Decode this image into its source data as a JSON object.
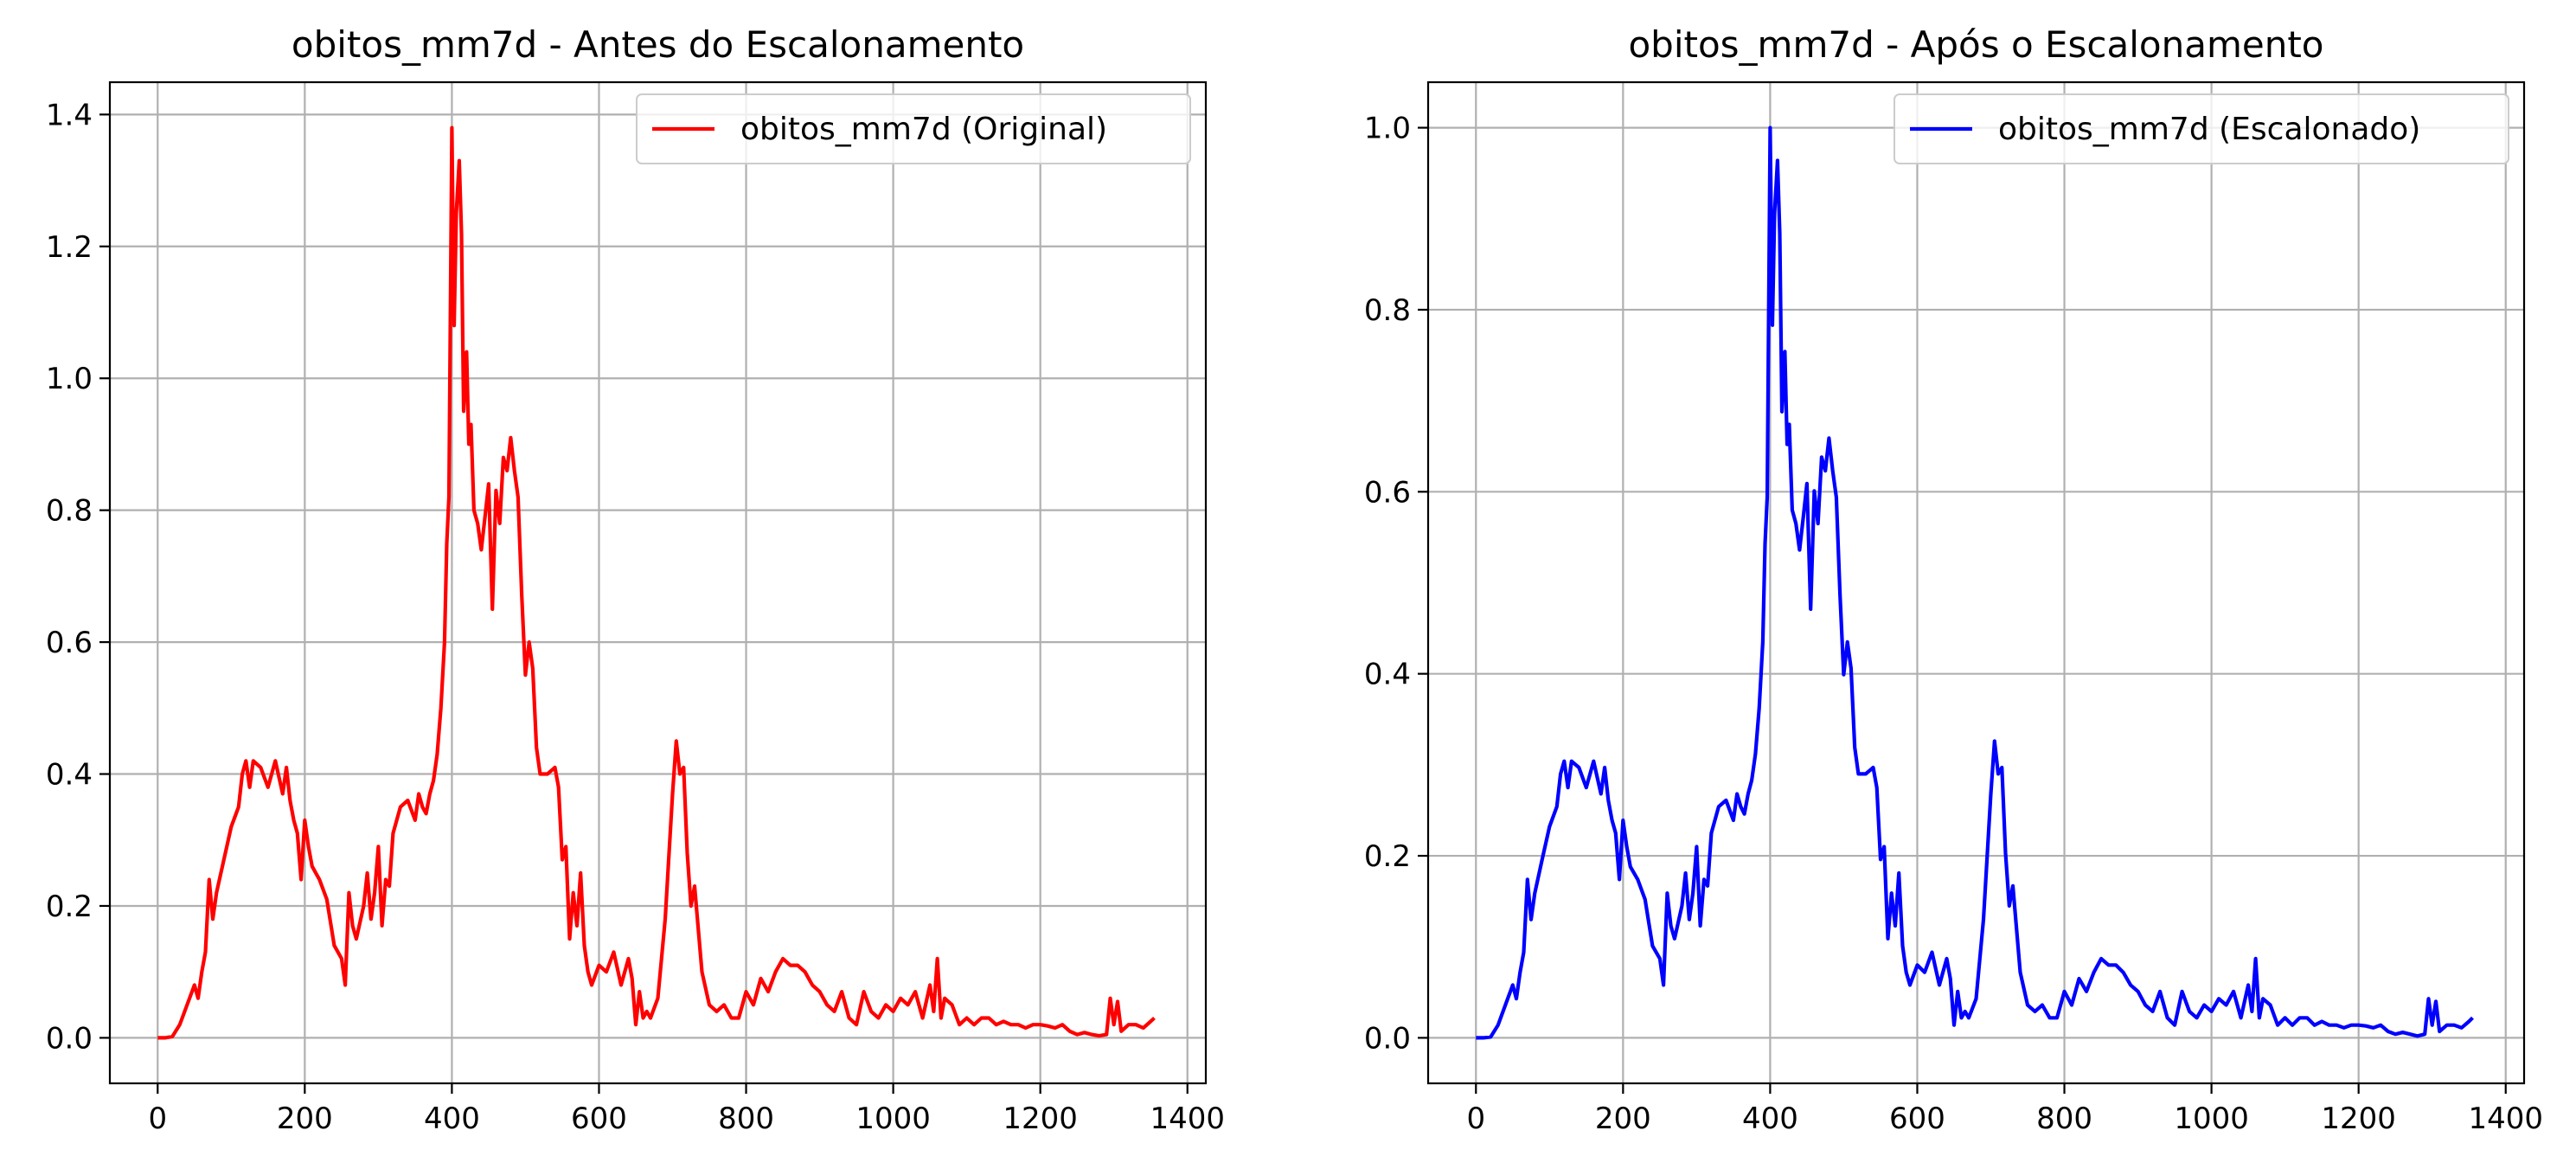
{
  "chart_data": [
    {
      "type": "line",
      "title": "obitos_mm7d - Antes do Escalonamento",
      "xlabel": "",
      "ylabel": "",
      "xlim": [
        -65,
        1425
      ],
      "ylim": [
        -0.069,
        1.449
      ],
      "xticks": [
        0,
        200,
        400,
        600,
        800,
        1000,
        1200,
        1400
      ],
      "yticks": [
        0.0,
        0.2,
        0.4,
        0.6,
        0.8,
        1.0,
        1.2,
        1.4
      ],
      "ytick_labels": [
        "0.0",
        "0.2",
        "0.4",
        "0.6",
        "0.8",
        "1.0",
        "1.2",
        "1.4"
      ],
      "grid": true,
      "legend_position": "top-right",
      "series": [
        {
          "name": "obitos_mm7d (Original)",
          "color": "#ff0000",
          "x": [
            0,
            10,
            20,
            30,
            40,
            50,
            55,
            60,
            65,
            70,
            75,
            80,
            90,
            100,
            110,
            115,
            120,
            125,
            130,
            140,
            150,
            160,
            170,
            175,
            180,
            185,
            190,
            195,
            200,
            205,
            210,
            220,
            230,
            240,
            250,
            255,
            260,
            265,
            270,
            280,
            285,
            290,
            295,
            300,
            305,
            310,
            315,
            320,
            330,
            340,
            350,
            355,
            360,
            365,
            370,
            375,
            380,
            385,
            390,
            393,
            396,
            400,
            403,
            406,
            410,
            413,
            416,
            420,
            423,
            426,
            430,
            435,
            440,
            445,
            450,
            455,
            460,
            465,
            470,
            475,
            480,
            485,
            490,
            495,
            500,
            505,
            510,
            515,
            520,
            530,
            540,
            545,
            550,
            555,
            560,
            565,
            570,
            575,
            580,
            585,
            590,
            600,
            610,
            620,
            630,
            640,
            645,
            650,
            655,
            660,
            665,
            670,
            680,
            690,
            700,
            705,
            710,
            715,
            720,
            725,
            730,
            740,
            750,
            760,
            770,
            780,
            790,
            800,
            810,
            820,
            830,
            840,
            850,
            860,
            870,
            880,
            890,
            900,
            910,
            920,
            930,
            940,
            950,
            960,
            970,
            980,
            990,
            1000,
            1010,
            1020,
            1030,
            1040,
            1050,
            1055,
            1060,
            1065,
            1070,
            1080,
            1090,
            1100,
            1110,
            1120,
            1130,
            1140,
            1150,
            1160,
            1170,
            1180,
            1190,
            1200,
            1210,
            1220,
            1230,
            1240,
            1250,
            1260,
            1270,
            1280,
            1290,
            1295,
            1300,
            1305,
            1310,
            1320,
            1330,
            1340,
            1350,
            1355
          ],
          "y": [
            0.0,
            0.0,
            0.002,
            0.02,
            0.05,
            0.08,
            0.06,
            0.1,
            0.13,
            0.24,
            0.18,
            0.22,
            0.27,
            0.32,
            0.35,
            0.4,
            0.42,
            0.38,
            0.42,
            0.41,
            0.38,
            0.42,
            0.37,
            0.41,
            0.36,
            0.33,
            0.31,
            0.24,
            0.33,
            0.29,
            0.26,
            0.24,
            0.21,
            0.14,
            0.12,
            0.08,
            0.22,
            0.17,
            0.15,
            0.2,
            0.25,
            0.18,
            0.22,
            0.29,
            0.17,
            0.24,
            0.23,
            0.31,
            0.35,
            0.36,
            0.33,
            0.37,
            0.35,
            0.34,
            0.37,
            0.39,
            0.43,
            0.5,
            0.6,
            0.75,
            0.82,
            1.38,
            1.08,
            1.25,
            1.33,
            1.22,
            0.95,
            1.04,
            0.9,
            0.93,
            0.8,
            0.78,
            0.74,
            0.79,
            0.84,
            0.65,
            0.83,
            0.78,
            0.88,
            0.86,
            0.91,
            0.86,
            0.82,
            0.67,
            0.55,
            0.6,
            0.56,
            0.44,
            0.4,
            0.4,
            0.41,
            0.38,
            0.27,
            0.29,
            0.15,
            0.22,
            0.17,
            0.25,
            0.14,
            0.1,
            0.08,
            0.11,
            0.1,
            0.13,
            0.08,
            0.12,
            0.09,
            0.02,
            0.07,
            0.03,
            0.04,
            0.03,
            0.06,
            0.18,
            0.37,
            0.45,
            0.4,
            0.41,
            0.28,
            0.2,
            0.23,
            0.1,
            0.05,
            0.04,
            0.05,
            0.03,
            0.03,
            0.07,
            0.05,
            0.09,
            0.07,
            0.1,
            0.12,
            0.11,
            0.11,
            0.1,
            0.08,
            0.07,
            0.05,
            0.04,
            0.07,
            0.03,
            0.02,
            0.07,
            0.04,
            0.03,
            0.05,
            0.04,
            0.06,
            0.05,
            0.07,
            0.03,
            0.08,
            0.04,
            0.12,
            0.03,
            0.06,
            0.05,
            0.02,
            0.03,
            0.02,
            0.03,
            0.03,
            0.02,
            0.025,
            0.02,
            0.02,
            0.015,
            0.02,
            0.02,
            0.018,
            0.015,
            0.02,
            0.01,
            0.005,
            0.008,
            0.005,
            0.003,
            0.005,
            0.06,
            0.02,
            0.055,
            0.01,
            0.02,
            0.02,
            0.015,
            0.025,
            0.03
          ]
        }
      ]
    },
    {
      "type": "line",
      "title": "obitos_mm7d - Após o Escalonamento",
      "xlabel": "",
      "ylabel": "",
      "xlim": [
        -65,
        1425
      ],
      "ylim": [
        -0.05,
        1.05
      ],
      "xticks": [
        0,
        200,
        400,
        600,
        800,
        1000,
        1200,
        1400
      ],
      "yticks": [
        0.0,
        0.2,
        0.4,
        0.6,
        0.8,
        1.0
      ],
      "ytick_labels": [
        "0.0",
        "0.2",
        "0.4",
        "0.6",
        "0.8",
        "1.0"
      ],
      "grid": true,
      "legend_position": "top-right",
      "series": [
        {
          "name": "obitos_mm7d (Escalonado)",
          "color": "#0000ff",
          "x": [
            0,
            10,
            20,
            30,
            40,
            50,
            55,
            60,
            65,
            70,
            75,
            80,
            90,
            100,
            110,
            115,
            120,
            125,
            130,
            140,
            150,
            160,
            170,
            175,
            180,
            185,
            190,
            195,
            200,
            205,
            210,
            220,
            230,
            240,
            250,
            255,
            260,
            265,
            270,
            280,
            285,
            290,
            295,
            300,
            305,
            310,
            315,
            320,
            330,
            340,
            350,
            355,
            360,
            365,
            370,
            375,
            380,
            385,
            390,
            393,
            396,
            400,
            403,
            406,
            410,
            413,
            416,
            420,
            423,
            426,
            430,
            435,
            440,
            445,
            450,
            455,
            460,
            465,
            470,
            475,
            480,
            485,
            490,
            495,
            500,
            505,
            510,
            515,
            520,
            530,
            540,
            545,
            550,
            555,
            560,
            565,
            570,
            575,
            580,
            585,
            590,
            600,
            610,
            620,
            630,
            640,
            645,
            650,
            655,
            660,
            665,
            670,
            680,
            690,
            700,
            705,
            710,
            715,
            720,
            725,
            730,
            740,
            750,
            760,
            770,
            780,
            790,
            800,
            810,
            820,
            830,
            840,
            850,
            860,
            870,
            880,
            890,
            900,
            910,
            920,
            930,
            940,
            950,
            960,
            970,
            980,
            990,
            1000,
            1010,
            1020,
            1030,
            1040,
            1050,
            1055,
            1060,
            1065,
            1070,
            1080,
            1090,
            1100,
            1110,
            1120,
            1130,
            1140,
            1150,
            1160,
            1170,
            1180,
            1190,
            1200,
            1210,
            1220,
            1230,
            1240,
            1250,
            1260,
            1270,
            1280,
            1290,
            1295,
            1300,
            1305,
            1310,
            1320,
            1330,
            1340,
            1350,
            1355
          ],
          "y": [
            0.0,
            0.0,
            0.001,
            0.014,
            0.036,
            0.058,
            0.043,
            0.072,
            0.094,
            0.174,
            0.13,
            0.159,
            0.196,
            0.232,
            0.254,
            0.29,
            0.304,
            0.275,
            0.304,
            0.297,
            0.275,
            0.304,
            0.268,
            0.297,
            0.261,
            0.239,
            0.225,
            0.174,
            0.239,
            0.21,
            0.188,
            0.174,
            0.152,
            0.101,
            0.087,
            0.058,
            0.159,
            0.123,
            0.109,
            0.145,
            0.181,
            0.13,
            0.159,
            0.21,
            0.123,
            0.174,
            0.167,
            0.225,
            0.254,
            0.261,
            0.239,
            0.268,
            0.254,
            0.246,
            0.268,
            0.283,
            0.312,
            0.362,
            0.435,
            0.543,
            0.594,
            1.0,
            0.783,
            0.906,
            0.964,
            0.884,
            0.688,
            0.754,
            0.652,
            0.674,
            0.58,
            0.565,
            0.536,
            0.572,
            0.609,
            0.471,
            0.601,
            0.565,
            0.638,
            0.623,
            0.659,
            0.623,
            0.594,
            0.486,
            0.399,
            0.435,
            0.406,
            0.319,
            0.29,
            0.29,
            0.297,
            0.275,
            0.196,
            0.21,
            0.109,
            0.159,
            0.123,
            0.181,
            0.101,
            0.072,
            0.058,
            0.08,
            0.072,
            0.094,
            0.058,
            0.087,
            0.065,
            0.014,
            0.051,
            0.022,
            0.029,
            0.022,
            0.043,
            0.13,
            0.268,
            0.326,
            0.29,
            0.297,
            0.203,
            0.145,
            0.167,
            0.072,
            0.036,
            0.029,
            0.036,
            0.022,
            0.022,
            0.051,
            0.036,
            0.065,
            0.051,
            0.072,
            0.087,
            0.08,
            0.08,
            0.072,
            0.058,
            0.051,
            0.036,
            0.029,
            0.051,
            0.022,
            0.014,
            0.051,
            0.029,
            0.022,
            0.036,
            0.029,
            0.043,
            0.036,
            0.051,
            0.022,
            0.058,
            0.029,
            0.087,
            0.022,
            0.043,
            0.036,
            0.014,
            0.022,
            0.014,
            0.022,
            0.022,
            0.014,
            0.018,
            0.014,
            0.014,
            0.011,
            0.014,
            0.014,
            0.013,
            0.011,
            0.014,
            0.007,
            0.004,
            0.006,
            0.004,
            0.002,
            0.004,
            0.043,
            0.014,
            0.04,
            0.007,
            0.014,
            0.014,
            0.011,
            0.018,
            0.022
          ]
        }
      ]
    }
  ]
}
